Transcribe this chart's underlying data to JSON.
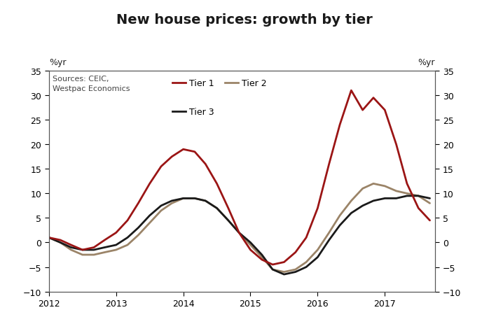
{
  "title": "New house prices: growth by tier",
  "source_text": "Sources: CEIC,\nWestpac Economics",
  "ylabel_left": "%yr",
  "ylabel_right": "%yr",
  "ylim": [
    -10,
    35
  ],
  "yticks": [
    -10,
    -5,
    0,
    5,
    10,
    15,
    20,
    25,
    30,
    35
  ],
  "xlim_start": 2012.0,
  "xlim_end": 2017.75,
  "xtick_positions": [
    2012,
    2013,
    2014,
    2015,
    2016,
    2017
  ],
  "xtick_labels": [
    "2012",
    "2013",
    "2014",
    "2015",
    "2016",
    "2017"
  ],
  "tier1_color": "#9b1515",
  "tier2_color": "#9b8468",
  "tier3_color": "#1a1a1a",
  "tier1_lw": 2.0,
  "tier2_lw": 2.0,
  "tier3_lw": 2.0,
  "tier1_x": [
    2012.0,
    2012.17,
    2012.33,
    2012.5,
    2012.67,
    2012.83,
    2013.0,
    2013.17,
    2013.33,
    2013.5,
    2013.67,
    2013.83,
    2014.0,
    2014.17,
    2014.33,
    2014.5,
    2014.67,
    2014.83,
    2015.0,
    2015.17,
    2015.33,
    2015.5,
    2015.67,
    2015.83,
    2016.0,
    2016.17,
    2016.33,
    2016.5,
    2016.67,
    2016.83,
    2017.0,
    2017.17,
    2017.33,
    2017.5,
    2017.67
  ],
  "tier1_y": [
    1.0,
    0.5,
    -0.5,
    -1.5,
    -1.0,
    0.5,
    2.0,
    4.5,
    8.0,
    12.0,
    15.5,
    17.5,
    19.0,
    18.5,
    16.0,
    12.0,
    7.0,
    2.0,
    -1.5,
    -3.5,
    -4.5,
    -4.0,
    -2.0,
    1.0,
    7.0,
    16.0,
    24.0,
    31.0,
    27.0,
    29.5,
    27.0,
    20.0,
    12.0,
    7.0,
    4.5
  ],
  "tier2_x": [
    2012.0,
    2012.17,
    2012.33,
    2012.5,
    2012.67,
    2012.83,
    2013.0,
    2013.17,
    2013.33,
    2013.5,
    2013.67,
    2013.83,
    2014.0,
    2014.17,
    2014.33,
    2014.5,
    2014.67,
    2014.83,
    2015.0,
    2015.17,
    2015.33,
    2015.5,
    2015.67,
    2015.83,
    2016.0,
    2016.17,
    2016.33,
    2016.5,
    2016.67,
    2016.83,
    2017.0,
    2017.17,
    2017.33,
    2017.5,
    2017.67
  ],
  "tier2_y": [
    1.0,
    0.0,
    -1.5,
    -2.5,
    -2.5,
    -2.0,
    -1.5,
    -0.5,
    1.5,
    4.0,
    6.5,
    8.0,
    9.0,
    9.0,
    8.5,
    7.0,
    4.5,
    2.0,
    -0.5,
    -3.0,
    -5.5,
    -6.0,
    -5.5,
    -4.0,
    -1.5,
    2.0,
    5.5,
    8.5,
    11.0,
    12.0,
    11.5,
    10.5,
    10.0,
    9.5,
    8.0
  ],
  "tier3_x": [
    2012.0,
    2012.17,
    2012.33,
    2012.5,
    2012.67,
    2012.83,
    2013.0,
    2013.17,
    2013.33,
    2013.5,
    2013.67,
    2013.83,
    2014.0,
    2014.17,
    2014.33,
    2014.5,
    2014.67,
    2014.83,
    2015.0,
    2015.17,
    2015.33,
    2015.5,
    2015.67,
    2015.83,
    2016.0,
    2016.17,
    2016.33,
    2016.5,
    2016.67,
    2016.83,
    2017.0,
    2017.17,
    2017.33,
    2017.5,
    2017.67
  ],
  "tier3_y": [
    1.0,
    0.0,
    -1.0,
    -1.5,
    -1.5,
    -1.0,
    -0.5,
    1.0,
    3.0,
    5.5,
    7.5,
    8.5,
    9.0,
    9.0,
    8.5,
    7.0,
    4.5,
    2.0,
    0.0,
    -2.5,
    -5.5,
    -6.5,
    -6.0,
    -5.0,
    -3.0,
    0.5,
    3.5,
    6.0,
    7.5,
    8.5,
    9.0,
    9.0,
    9.5,
    9.5,
    9.0
  ],
  "bg_color": "#ffffff",
  "tick_fontsize": 9,
  "legend_fontsize": 9,
  "source_fontsize": 8,
  "title_fontsize": 14
}
